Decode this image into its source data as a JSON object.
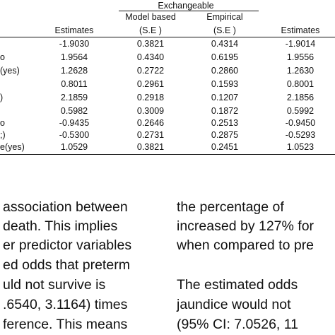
{
  "table": {
    "group_header": "Exchangeable",
    "subheaders": {
      "model_based": "Model based",
      "empirical": "Empirical"
    },
    "headers": [
      "Estimates",
      "(S.E )",
      "(S.E )",
      "Estimates"
    ],
    "rows": [
      {
        "label": "",
        "values": [
          "-1.9030",
          "0.3821",
          "0.4314",
          "-1.9014"
        ]
      },
      {
        "label": "o",
        "values": [
          "1.9564",
          "0.4340",
          "0.6195",
          "1.9556"
        ]
      },
      {
        "label": "(yes)",
        "values": [
          "1.2628",
          "0.2722",
          "0.2860",
          "1.2630"
        ]
      },
      {
        "label": "",
        "values": [
          "0.8011",
          "0.2961",
          "0.1593",
          "0.8001"
        ]
      },
      {
        "label": ")",
        "values": [
          "2.1859",
          "0.2918",
          "0.1207",
          "2.1856"
        ]
      },
      {
        "label": "",
        "values": [
          "0.5982",
          "0.3009",
          "0.1872",
          "0.5992"
        ]
      },
      {
        "label": "o",
        "values": [
          "-0.9435",
          "0.2646",
          "0.2513",
          "-0.9450"
        ]
      },
      {
        "label": ";)",
        "values": [
          "-0.5300",
          "0.2731",
          "0.2875",
          "-0.5293"
        ]
      },
      {
        "label": "e(yes)",
        "values": [
          "1.0529",
          "0.3821",
          "0.2451",
          "1.0523"
        ]
      }
    ]
  },
  "body_text": {
    "left_lines": [
      "association  between",
      "death.  This  implies",
      "er predictor variables",
      "ed  odds  that  preterm",
      "uld   not   survive   is",
      ".6540,  3.1164)  times",
      "ference.  This means"
    ],
    "right_lines": [
      "the   percentage   of",
      "increased by 127% for",
      "when compared to pre",
      "",
      "The estimated odds",
      "jaundice  would  not",
      "(95%  CI:  7.0526,  11"
    ]
  }
}
